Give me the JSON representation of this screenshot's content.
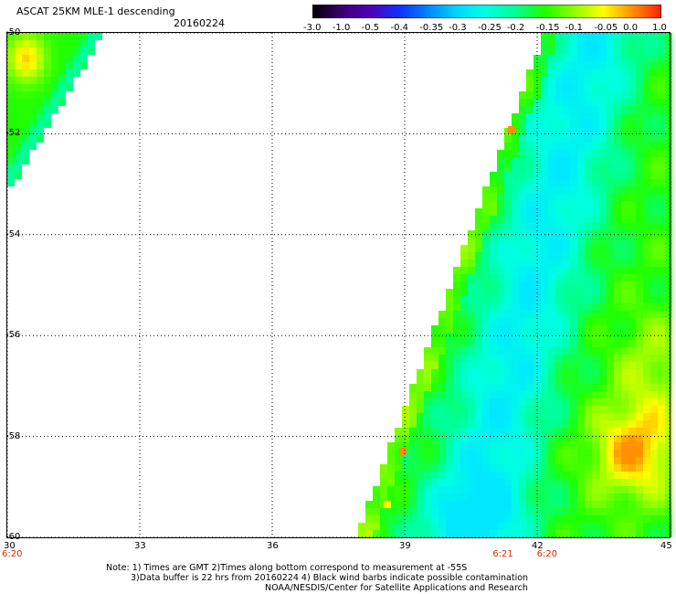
{
  "header": {
    "title": "ASCAT 25KM MLE-1 descending",
    "date": "20160224"
  },
  "colorbar": {
    "labels": [
      "-3.0",
      "-1.0",
      "-0.5",
      "-0.4",
      "-0.35",
      "-0.3",
      "-0.25",
      "-0.2",
      "-0.15",
      "-0.1",
      "-0.05",
      "0.0",
      "1.0"
    ],
    "colors": [
      "#000000",
      "#3a0070",
      "#5000b8",
      "#1030ff",
      "#0088ff",
      "#00d8ff",
      "#00ffe0",
      "#00ff90",
      "#20ff00",
      "#90ff00",
      "#ffff00",
      "#ff9000",
      "#ff2000"
    ]
  },
  "map": {
    "lat_labels": [
      "-50",
      "-52",
      "-54",
      "-56",
      "-58",
      "-60"
    ],
    "lon_labels": [
      "30",
      "33",
      "36",
      "39",
      "42",
      "45"
    ],
    "lat_range": [
      -60,
      -50
    ],
    "lon_range": [
      30,
      45
    ],
    "time_labels": [
      {
        "text": "6:20",
        "lon": 30
      },
      {
        "text": "6:21",
        "lon": 41.2
      },
      {
        "text": "6:20",
        "lon": 42.2
      }
    ]
  },
  "notes": {
    "line1": "Note: 1) Times are GMT 2)Times along bottom correspond to measurement at -55S",
    "line2": "3)Data buffer is 22 hrs from 20160224 4) Black wind barbs indicate possible contamination",
    "line3": "NOAA/NESDIS/Center for Satellite Applications and Research"
  }
}
